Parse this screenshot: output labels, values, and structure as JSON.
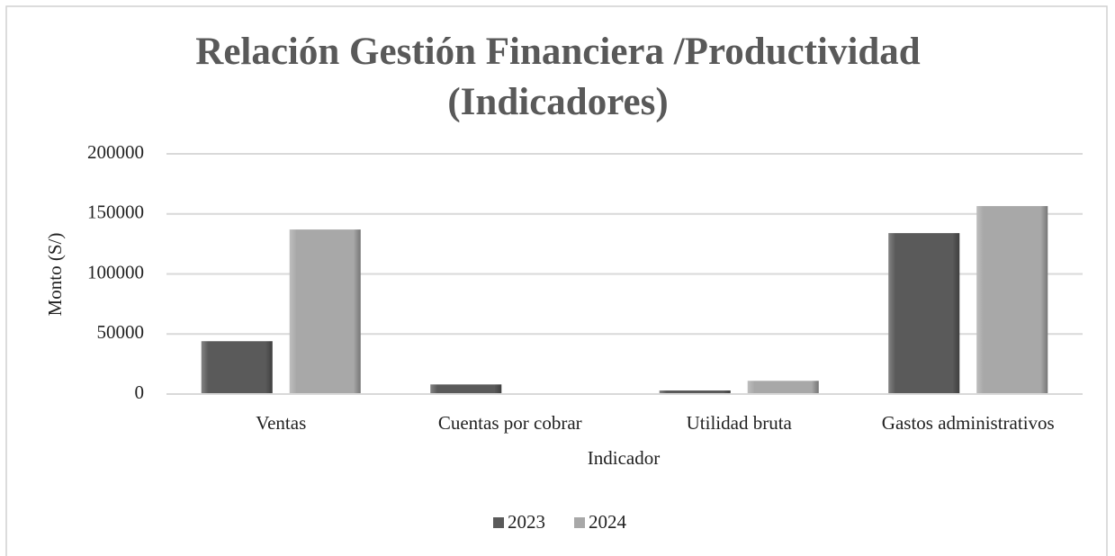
{
  "chart_data": {
    "type": "bar",
    "title": "Relación Gestión Financiera /Productividad (Indicadores)",
    "x_label": "Indicador",
    "y_label": "Monto (S/)",
    "categories": [
      "Ventas",
      "Cuentas por cobrar",
      "Utilidad bruta",
      "Gastos administrativos"
    ],
    "series": [
      {
        "name": "2023",
        "color": "#5a5a5a",
        "values": [
          44000,
          8000,
          3000,
          134000
        ]
      },
      {
        "name": "2024",
        "color": "#a8a8a8",
        "values": [
          137000,
          0,
          11000,
          156500
        ]
      }
    ],
    "ylim": [
      0,
      200000
    ],
    "yticks": [
      0,
      50000,
      100000,
      150000,
      200000
    ],
    "grid": true,
    "legend": "bottom"
  }
}
